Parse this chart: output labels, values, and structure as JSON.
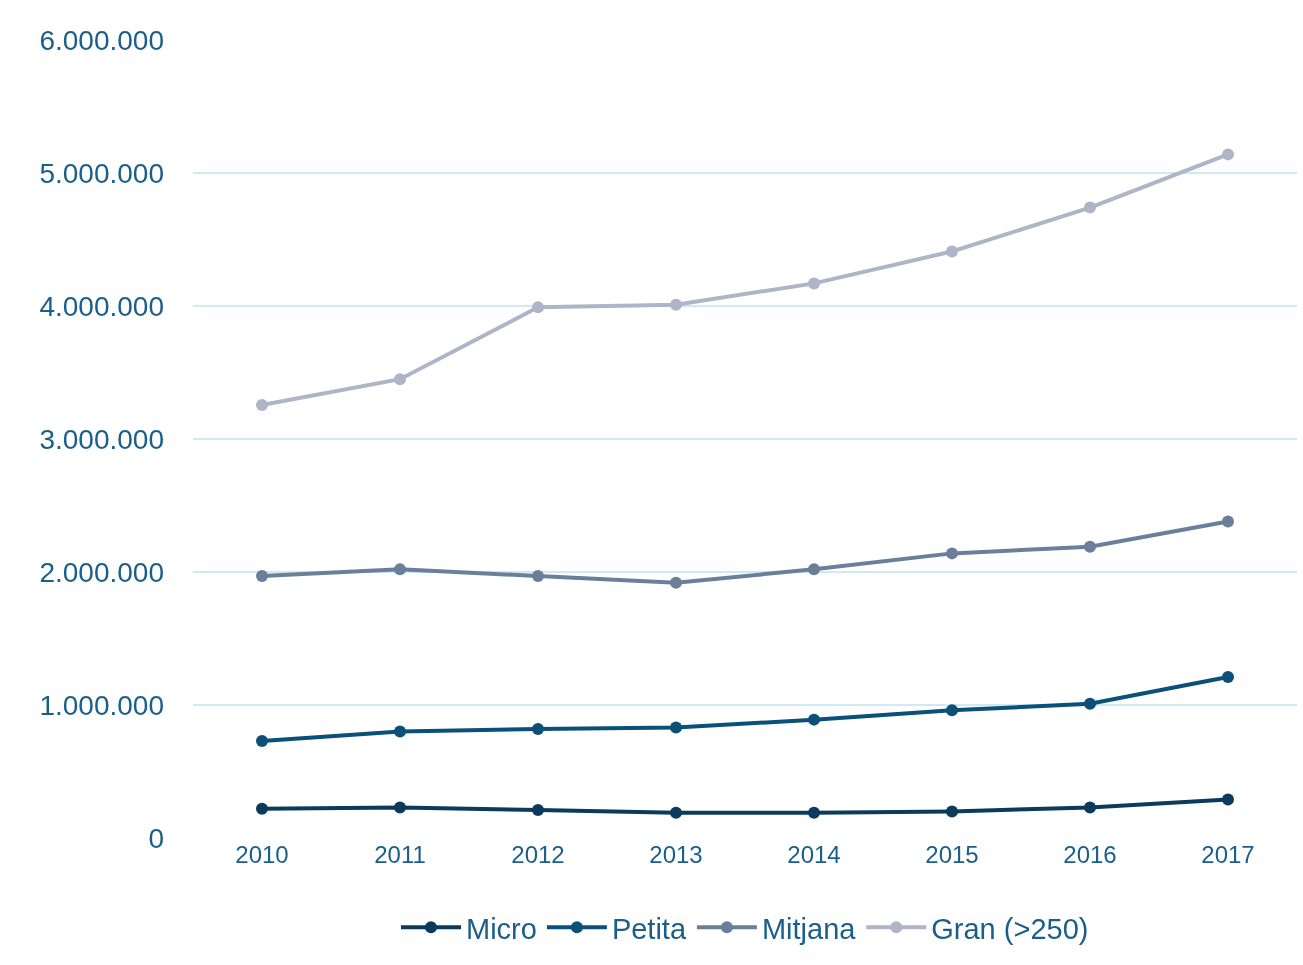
{
  "chart_data": {
    "type": "line",
    "categories": [
      "2010",
      "2011",
      "2012",
      "2013",
      "2014",
      "2015",
      "2016",
      "2017"
    ],
    "series": [
      {
        "name": "Micro",
        "color": "#0b3a5c",
        "values": [
          220000,
          230000,
          210000,
          190000,
          190000,
          200000,
          230000,
          290000
        ]
      },
      {
        "name": "Petita",
        "color": "#0a5078",
        "values": [
          730000,
          800000,
          820000,
          830000,
          890000,
          960000,
          1010000,
          1210000
        ]
      },
      {
        "name": "Mitjana",
        "color": "#6b7f9b",
        "values": [
          1970000,
          2020000,
          1970000,
          1920000,
          2020000,
          2140000,
          2190000,
          2380000
        ]
      },
      {
        "name": "Gran (>250)",
        "color": "#adb5c6",
        "values": [
          3256000,
          3450000,
          3990000,
          4010000,
          4170000,
          4410000,
          4740000,
          5140000
        ]
      }
    ],
    "ylim": [
      0,
      6000000
    ],
    "yticks": [
      0,
      {
        "value": 1000000,
        "label": "1.000.000"
      },
      {
        "value": 2000000,
        "label": "2.000.000"
      },
      {
        "value": 3000000,
        "label": "3.000.000"
      },
      {
        "value": 4000000,
        "label": "4.000.000"
      },
      {
        "value": 5000000,
        "label": "5.000.000"
      },
      {
        "value": 6000000,
        "label": "6.000.000"
      }
    ],
    "grid": "y",
    "legend": "bottom",
    "marker": "circle",
    "line_style": "solid"
  }
}
